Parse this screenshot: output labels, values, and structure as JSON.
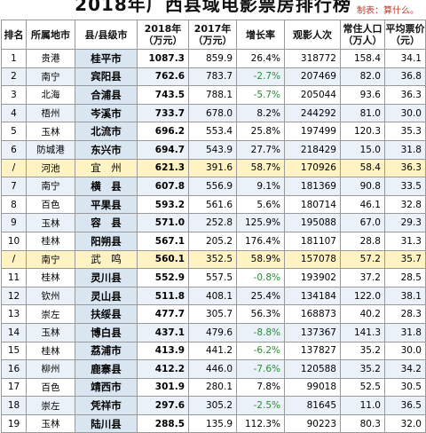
{
  "title": "2018年广西县域电影票房排行榜",
  "maker": "制表：算什么。",
  "headers": [
    "排名",
    "所属地市",
    "县/县级市",
    "2018年\n（万元）",
    "2017年\n（万元）",
    "增长率",
    "观影人次",
    "常住人口\n（万人）",
    "平均票价\n（元）"
  ],
  "rows": [
    {
      "rank": "1",
      "city": "贵港",
      "county": "桂平市",
      "y2018": "1087.3",
      "y2017": "859.9",
      "growth": "26.4%",
      "neg": false,
      "viewers": "318772",
      "pop": "158.4",
      "price": "34.1",
      "hl": false
    },
    {
      "rank": "2",
      "city": "南宁",
      "county": "宾阳县",
      "y2018": "762.6",
      "y2017": "783.7",
      "growth": "-2.7%",
      "neg": true,
      "viewers": "207469",
      "pop": "82.0",
      "price": "36.8",
      "hl": false
    },
    {
      "rank": "3",
      "city": "北海",
      "county": "合浦县",
      "y2018": "743.5",
      "y2017": "788.1",
      "growth": "-5.7%",
      "neg": true,
      "viewers": "205044",
      "pop": "93.6",
      "price": "36.3",
      "hl": false
    },
    {
      "rank": "4",
      "city": "梧州",
      "county": "岑溪市",
      "y2018": "733.7",
      "y2017": "678.0",
      "growth": "8.2%",
      "neg": false,
      "viewers": "244292",
      "pop": "81.0",
      "price": "30.0",
      "hl": false
    },
    {
      "rank": "5",
      "city": "玉林",
      "county": "北流市",
      "y2018": "696.2",
      "y2017": "553.4",
      "growth": "25.8%",
      "neg": false,
      "viewers": "197499",
      "pop": "120.3",
      "price": "35.3",
      "hl": false
    },
    {
      "rank": "6",
      "city": "防城港",
      "county": "东兴市",
      "y2018": "694.7",
      "y2017": "543.9",
      "growth": "27.7%",
      "neg": false,
      "viewers": "218429",
      "pop": "15.0",
      "price": "31.8",
      "hl": false
    },
    {
      "rank": "/",
      "city": "河池",
      "county": "宜　州",
      "y2018": "621.3",
      "y2017": "391.6",
      "growth": "58.7%",
      "neg": false,
      "viewers": "170926",
      "pop": "58.4",
      "price": "36.3",
      "hl": true
    },
    {
      "rank": "7",
      "city": "南宁",
      "county": "横　县",
      "y2018": "607.8",
      "y2017": "556.9",
      "growth": "9.1%",
      "neg": false,
      "viewers": "181369",
      "pop": "90.8",
      "price": "33.5",
      "hl": false
    },
    {
      "rank": "8",
      "city": "百色",
      "county": "平果县",
      "y2018": "593.2",
      "y2017": "561.6",
      "growth": "5.6%",
      "neg": false,
      "viewers": "180714",
      "pop": "46.1",
      "price": "32.8",
      "hl": false
    },
    {
      "rank": "9",
      "city": "玉林",
      "county": "容　县",
      "y2018": "571.0",
      "y2017": "252.8",
      "growth": "125.9%",
      "neg": false,
      "viewers": "195088",
      "pop": "67.0",
      "price": "29.3",
      "hl": false
    },
    {
      "rank": "10",
      "city": "桂林",
      "county": "阳朔县",
      "y2018": "567.1",
      "y2017": "205.2",
      "growth": "176.4%",
      "neg": false,
      "viewers": "181107",
      "pop": "28.8",
      "price": "31.3",
      "hl": false
    },
    {
      "rank": "/",
      "city": "南宁",
      "county": "武　鸣",
      "y2018": "560.1",
      "y2017": "352.5",
      "growth": "58.9%",
      "neg": false,
      "viewers": "157078",
      "pop": "57.2",
      "price": "35.7",
      "hl": true
    },
    {
      "rank": "11",
      "city": "桂林",
      "county": "灵川县",
      "y2018": "552.9",
      "y2017": "557.5",
      "growth": "-0.8%",
      "neg": true,
      "viewers": "193902",
      "pop": "37.2",
      "price": "28.5",
      "hl": false
    },
    {
      "rank": "12",
      "city": "钦州",
      "county": "灵山县",
      "y2018": "511.8",
      "y2017": "408.1",
      "growth": "25.4%",
      "neg": false,
      "viewers": "134184",
      "pop": "122.0",
      "price": "38.1",
      "hl": false
    },
    {
      "rank": "13",
      "city": "崇左",
      "county": "扶绥县",
      "y2018": "477.7",
      "y2017": "305.7",
      "growth": "56.3%",
      "neg": false,
      "viewers": "168873",
      "pop": "40.2",
      "price": "28.3",
      "hl": false
    },
    {
      "rank": "14",
      "city": "玉林",
      "county": "博白县",
      "y2018": "437.1",
      "y2017": "479.6",
      "growth": "-8.8%",
      "neg": true,
      "viewers": "137367",
      "pop": "141.3",
      "price": "31.8",
      "hl": false
    },
    {
      "rank": "15",
      "city": "桂林",
      "county": "荔浦市",
      "y2018": "413.9",
      "y2017": "441.2",
      "growth": "-6.2%",
      "neg": true,
      "viewers": "137827",
      "pop": "35.2",
      "price": "30.0",
      "hl": false
    },
    {
      "rank": "16",
      "city": "柳州",
      "county": "鹿寨县",
      "y2018": "412.2",
      "y2017": "446.0",
      "growth": "-7.6%",
      "neg": true,
      "viewers": "120588",
      "pop": "35.2",
      "price": "34.2",
      "hl": false
    },
    {
      "rank": "17",
      "city": "百色",
      "county": "靖西市",
      "y2018": "301.9",
      "y2017": "280.1",
      "growth": "7.8%",
      "neg": false,
      "viewers": "99018",
      "pop": "52.5",
      "price": "30.5",
      "hl": false
    },
    {
      "rank": "18",
      "city": "崇左",
      "county": "凭祥市",
      "y2018": "297.6",
      "y2017": "305.2",
      "growth": "-2.5%",
      "neg": true,
      "viewers": "81645",
      "pop": "11.0",
      "price": "36.5",
      "hl": false
    },
    {
      "rank": "19",
      "city": "玉林",
      "county": "陆川县",
      "y2018": "288.5",
      "y2017": "135.9",
      "growth": "112.3%",
      "neg": false,
      "viewers": "90223",
      "pop": "80.3",
      "price": "32.0",
      "hl": false
    }
  ]
}
